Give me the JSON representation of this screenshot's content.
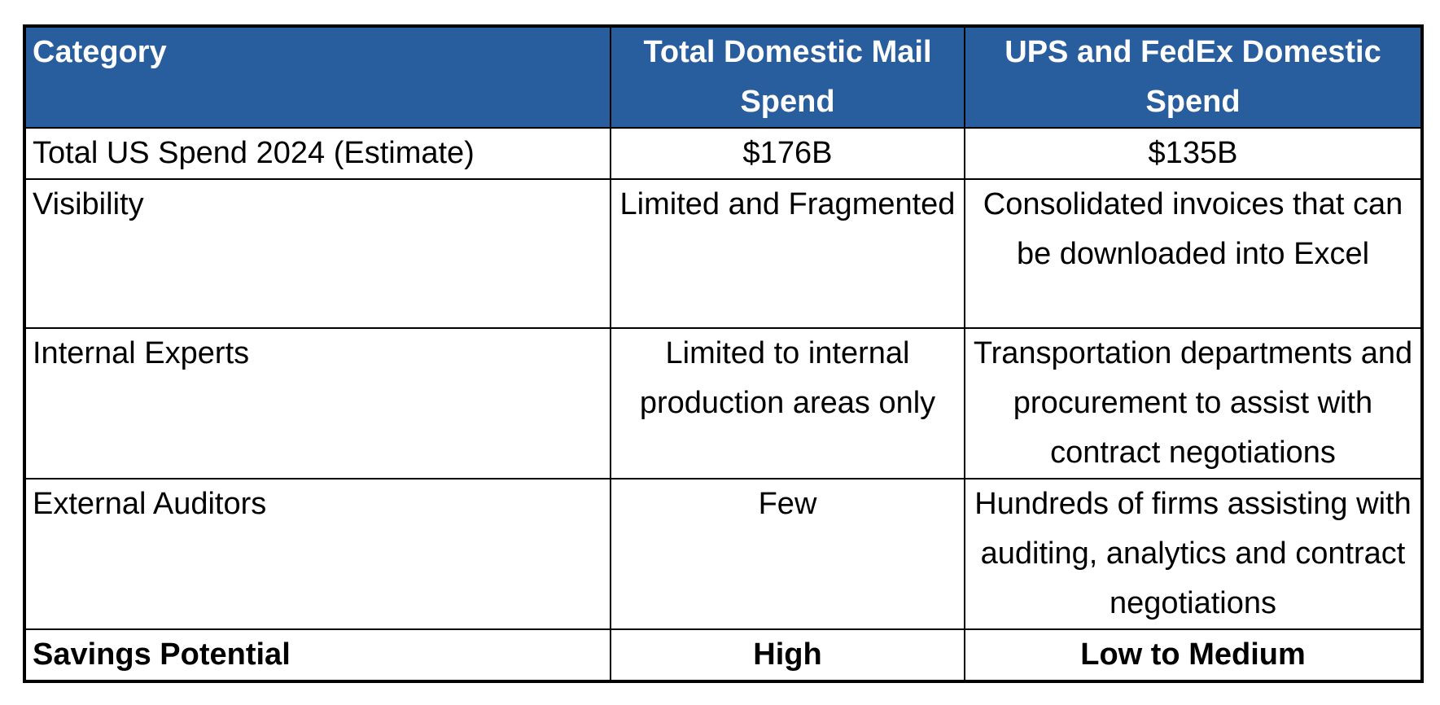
{
  "table": {
    "headers": [
      "Category",
      "Total Domestic Mail Spend",
      "UPS  and FedEx  Domestic Spend"
    ],
    "rows": [
      [
        "Total US Spend 2024 (Estimate)",
        "$176B",
        "$135B"
      ],
      [
        "Visibility",
        "Limited and Fragmented",
        "Consolidated invoices that can be downloaded into Excel"
      ],
      [
        "Internal Experts",
        "Limited to internal production areas only",
        "Transportation departments and procurement to assist with contract negotiations"
      ],
      [
        "External Auditors",
        "Few",
        "Hundreds of firms assisting with auditing, analytics and contract negotiations"
      ],
      [
        "Savings Potential",
        "High",
        "Low to Medium"
      ]
    ],
    "header_color": "#285d9e",
    "bold_last_row": true
  }
}
